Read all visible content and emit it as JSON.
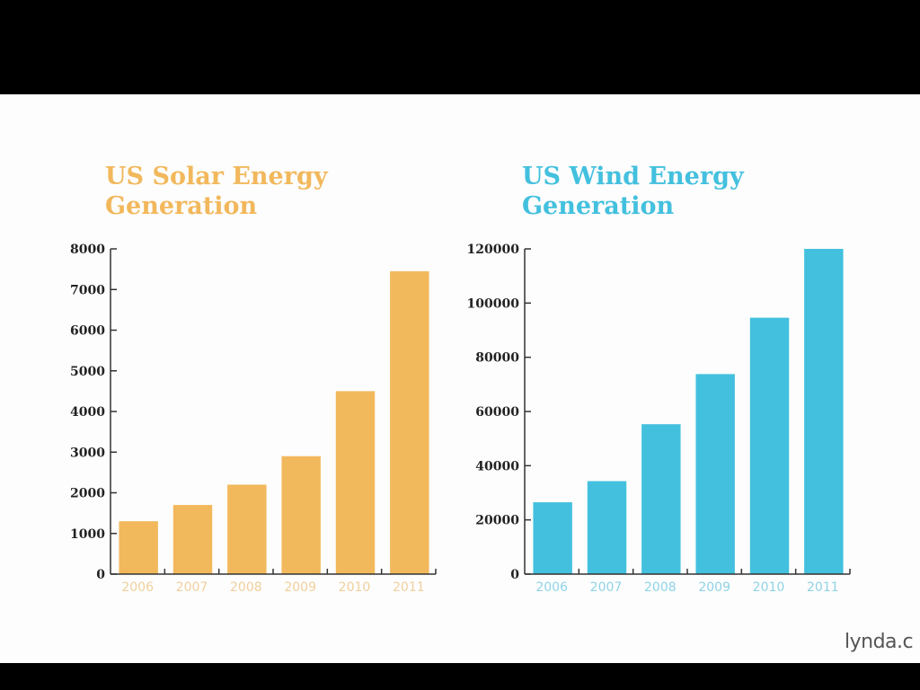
{
  "chart_data": [
    {
      "type": "bar",
      "title": "US Solar Energy Generation",
      "title_lines": [
        "US Solar Energy",
        "Generation"
      ],
      "categories": [
        "2006",
        "2007",
        "2008",
        "2009",
        "2010",
        "2011"
      ],
      "values": [
        1300,
        1700,
        2200,
        2900,
        4500,
        7450
      ],
      "yticks": [
        0,
        1000,
        2000,
        3000,
        4000,
        5000,
        6000,
        7000,
        8000
      ],
      "ylim": [
        0,
        8000
      ],
      "xlabel": "",
      "ylabel": "",
      "grid": false,
      "color": "#f2b85c",
      "label_color": "#f0cf9c"
    },
    {
      "type": "bar",
      "title": "US Wind Energy Generation",
      "title_lines": [
        "US Wind Energy",
        "Generation"
      ],
      "categories": [
        "2006",
        "2007",
        "2008",
        "2009",
        "2010",
        "2011"
      ],
      "values": [
        26500,
        34300,
        55300,
        73800,
        94600,
        120000
      ],
      "yticks": [
        0,
        20000,
        40000,
        60000,
        80000,
        100000,
        120000
      ],
      "ylim": [
        0,
        120000
      ],
      "xlabel": "",
      "ylabel": "",
      "grid": false,
      "color": "#43c0de",
      "label_color": "#8fd3e6"
    }
  ],
  "watermark": "lynda.com"
}
